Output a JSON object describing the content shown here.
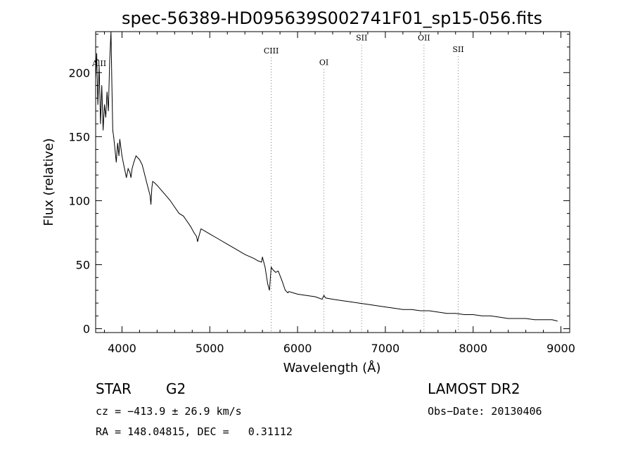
{
  "chart_data": {
    "type": "line",
    "title": "spec-56389-HD095639S002741F01_sp15-056.fits",
    "xlabel": "Wavelength (Å)",
    "ylabel": "Flux (relative)",
    "xlim": [
      3700,
      9100
    ],
    "ylim": [
      -3,
      232
    ],
    "xticks": [
      4000,
      5000,
      6000,
      7000,
      8000,
      9000
    ],
    "yticks": [
      0,
      50,
      100,
      150,
      200
    ],
    "grid": false,
    "series": [
      {
        "x": [
          3700,
          3712,
          3725,
          3740,
          3755,
          3770,
          3785,
          3800,
          3815,
          3830,
          3845,
          3860,
          3875,
          3885,
          3895,
          3905,
          3920,
          3935,
          3950,
          3965,
          3975,
          3990,
          4000,
          4020,
          4050,
          4070,
          4090,
          4102,
          4115,
          4135,
          4160,
          4200,
          4230,
          4260,
          4290,
          4320,
          4330,
          4340,
          4350,
          4370,
          4400,
          4450,
          4500,
          4550,
          4600,
          4650,
          4700,
          4740,
          4780,
          4820,
          4850,
          4861,
          4875,
          4900,
          4950,
          5000,
          5100,
          5200,
          5300,
          5400,
          5500,
          5550,
          5590,
          5600,
          5630,
          5660,
          5680,
          5700,
          5720,
          5750,
          5780,
          5820,
          5860,
          5890,
          5900,
          5950,
          6000,
          6100,
          6200,
          6280,
          6300,
          6320,
          6400,
          6500,
          6600,
          6700,
          6800,
          6900,
          7000,
          7100,
          7200,
          7300,
          7400,
          7500,
          7600,
          7700,
          7800,
          7900,
          8000,
          8100,
          8200,
          8300,
          8400,
          8500,
          8600,
          8700,
          8800,
          8900,
          8960
        ],
        "y": [
          195,
          215,
          175,
          205,
          160,
          190,
          155,
          175,
          165,
          185,
          170,
          210,
          232,
          190,
          155,
          150,
          140,
          130,
          145,
          135,
          148,
          140,
          135,
          128,
          118,
          125,
          122,
          118,
          125,
          130,
          135,
          132,
          128,
          120,
          112,
          104,
          97,
          110,
          115,
          114,
          112,
          108,
          104,
          100,
          95,
          90,
          88,
          84,
          80,
          75,
          72,
          68,
          72,
          78,
          76,
          74,
          70,
          66,
          62,
          58,
          55,
          53,
          52,
          56,
          48,
          35,
          30,
          48,
          46,
          44,
          45,
          38,
          30,
          28,
          29,
          28,
          27,
          26,
          25,
          23,
          26,
          24,
          23,
          22,
          21,
          20,
          19,
          18,
          17,
          16,
          15,
          15,
          14,
          14,
          13,
          12,
          12,
          11,
          11,
          10,
          10,
          9,
          8,
          8,
          8,
          7,
          7,
          7,
          6
        ]
      }
    ],
    "line_markers": [
      {
        "label": "AlII",
        "x": 3740,
        "label_y": 205
      },
      {
        "label": "CIII",
        "x": 5700,
        "label_y": 215
      },
      {
        "label": "OI",
        "x": 6300,
        "label_y": 206
      },
      {
        "label": "SII",
        "x": 6730,
        "label_y": 225
      },
      {
        "label": "OII",
        "x": 7440,
        "label_y": 225
      },
      {
        "label": "SII",
        "x": 7830,
        "label_y": 216
      }
    ]
  },
  "info": {
    "object_class": "STAR",
    "subclass": "G2",
    "survey": "LAMOST DR2",
    "cz": "cz = −413.9 ± 26.9 km/s",
    "obs_date": "Obs−Date: 20130406",
    "radec": "RA = 148.04815, DEC =   0.31112"
  }
}
